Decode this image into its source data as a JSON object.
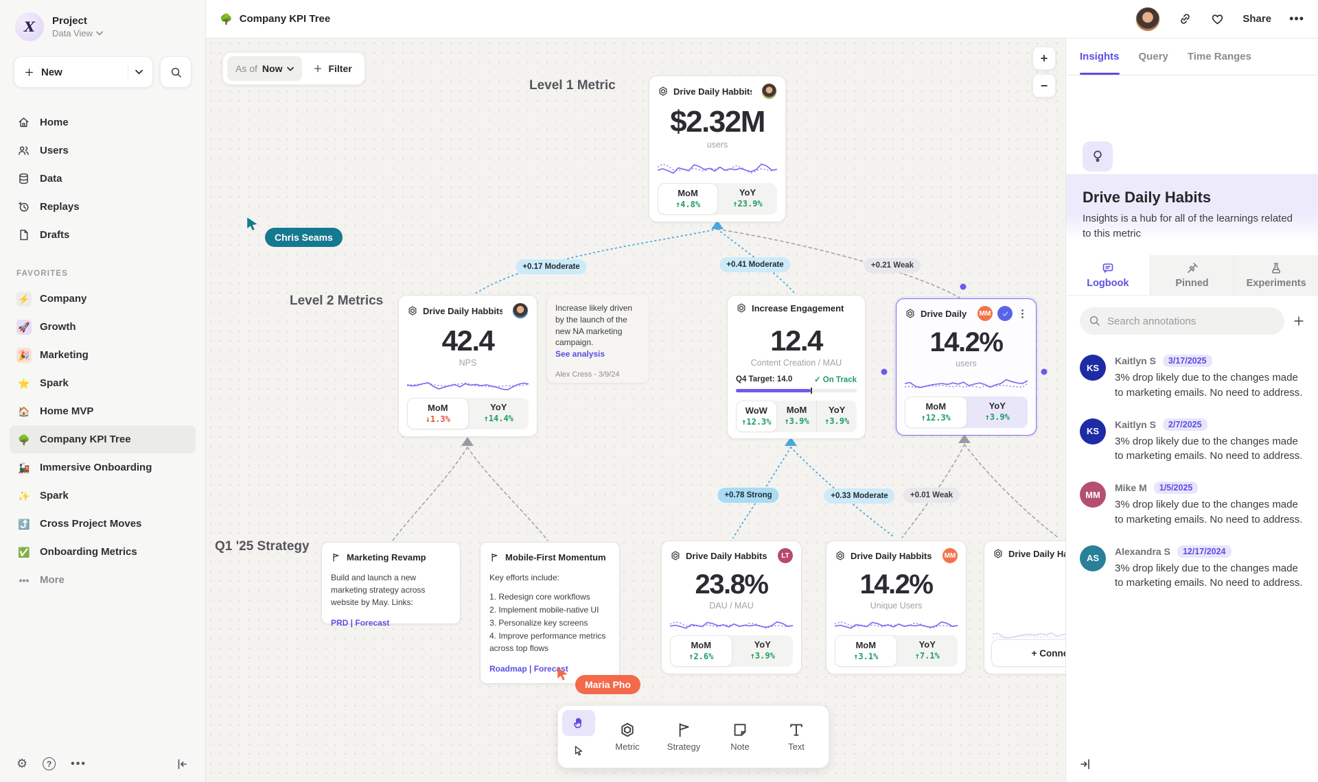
{
  "topbar": {
    "title_icon": "🌳",
    "title": "Company KPI Tree",
    "share": "Share"
  },
  "sidebar": {
    "workspace": "Project",
    "workspace_view": "Data View",
    "new_label": "New",
    "nav": [
      {
        "label": "Home"
      },
      {
        "label": "Users"
      },
      {
        "label": "Data"
      },
      {
        "label": "Replays"
      },
      {
        "label": "Drafts"
      }
    ],
    "favorites_label": "FAVORITES",
    "favorites": [
      {
        "icon": "⚡",
        "label": "Company"
      },
      {
        "icon": "🚀",
        "label": "Growth"
      },
      {
        "icon": "🎉",
        "label": "Marketing"
      },
      {
        "icon": "⭐",
        "label": "Spark"
      },
      {
        "icon": "🏠",
        "label": "Home MVP"
      },
      {
        "icon": "🌳",
        "label": "Company KPI Tree"
      },
      {
        "icon": "🚂",
        "label": "Immersive Onboarding"
      },
      {
        "icon": "✨",
        "label": "Spark"
      },
      {
        "icon": "⤴️",
        "label": "Cross Project Moves"
      },
      {
        "icon": "✅",
        "label": "Onboarding Metrics"
      }
    ],
    "more": "More"
  },
  "canvas": {
    "asof_label": "As of",
    "asof_value": "Now",
    "filter": "Filter",
    "zoom_in": "+",
    "zoom_out": "−",
    "labels": {
      "level1": "Level 1 Metric",
      "level2": "Level 2 Metrics",
      "strategy": "Q1 '25 Strategy"
    },
    "cursors": {
      "chris": "Chris Seams",
      "maria": "Maria Pho"
    },
    "edges": [
      "+0.17 Moderate",
      "+0.41 Moderate",
      "+0.21 Weak",
      "+0.78 Strong",
      "+0.33 Moderate",
      "+0.01 Weak"
    ],
    "cards": {
      "l1": {
        "title": "Drive Daily Habbits",
        "value": "$2.32M",
        "unit": "users",
        "mom_label": "MoM",
        "mom": "↑4.8%",
        "yoy_label": "YoY",
        "yoy": "↑23.9%"
      },
      "nps": {
        "title": "Drive Daily Habbits",
        "value": "42.4",
        "unit": "NPS",
        "mom_label": "MoM",
        "mom": "↓1.3%",
        "yoy_label": "YoY",
        "yoy": "↑14.4%"
      },
      "engagement": {
        "title": "Increase Engagement",
        "value": "12.4",
        "unit": "Content Creation / MAU",
        "target": "Q4 Target: 14.0",
        "status": "✓ On Track",
        "progress_pct": 62,
        "wow_label": "WoW",
        "wow": "↑12.3%",
        "mom_label": "MoM",
        "mom": "↑3.9%",
        "yoy_label": "YoY",
        "yoy": "↑3.9%"
      },
      "selected": {
        "title": "Drive Daily Habb..",
        "badge": "MM",
        "value": "14.2%",
        "unit": "users",
        "mom_label": "MoM",
        "mom": "↑12.3%",
        "yoy_label": "YoY",
        "yoy": "↑3.9%"
      },
      "dau": {
        "title": "Drive Daily Habbits",
        "badge": "LT",
        "value": "23.8%",
        "unit": "DAU / MAU",
        "mom_label": "MoM",
        "mom": "↑2.6%",
        "yoy_label": "YoY",
        "yoy": "↑3.9%"
      },
      "unique": {
        "title": "Drive Daily Habbits",
        "badge": "MM",
        "value": "14.2%",
        "unit": "Unique Users",
        "mom_label": "MoM",
        "mom": "↑3.1%",
        "yoy_label": "YoY",
        "yoy": "↑7.1%"
      },
      "partial": {
        "title": "Drive Daily Hab",
        "connect": "+ Connect"
      }
    },
    "note": {
      "text": "Increase likely driven by the launch of the new NA marketing campaign.",
      "link": "See analysis",
      "author": "Alex Cress - 3/9/24"
    },
    "strategies": {
      "marketing": {
        "title": "Marketing Revamp",
        "body": "Build and launch a new marketing strategy across website by May. Links:",
        "links": "PRD | Forecast"
      },
      "mobile": {
        "title": "Mobile-First Momentum",
        "intro": "Key efforts include:",
        "items": [
          "1. Redesign core workflows",
          "2. Implement mobile-native UI",
          "3. Personalize key screens",
          "4. Improve performance metrics across top flows"
        ],
        "links": "Roadmap | Forecast"
      }
    },
    "tools": {
      "metric": "Metric",
      "strategy": "Strategy",
      "note": "Note",
      "text": "Text"
    }
  },
  "right_panel": {
    "tabs": [
      "Insights",
      "Query",
      "Time Ranges"
    ],
    "metric_title": "Drive Daily Habits",
    "metric_desc": "Insights is a hub for all of the learnings related to this metric",
    "subtabs": [
      "Logbook",
      "Pinned",
      "Experiments"
    ],
    "search_placeholder": "Search annotations",
    "annotations": [
      {
        "initials": "KS",
        "name": "Kaitlyn S",
        "date": "3/17/2025",
        "text": "3% drop likely due to the changes made to marketing emails. No need to address.",
        "color": "#1d2ba6"
      },
      {
        "initials": "KS",
        "name": "Kaitlyn S",
        "date": "2/7/2025",
        "text": "3% drop likely due to the changes made to marketing emails. No need to address.",
        "color": "#1d2ba6"
      },
      {
        "initials": "MM",
        "name": "Mike M",
        "date": "1/5/2025",
        "text": "3% drop likely due to the changes made to marketing emails. No need to address.",
        "color": "#b44f72"
      },
      {
        "initials": "AS",
        "name": "Alexandra S",
        "date": "12/17/2024",
        "text": "3% drop likely due to the changes made to marketing emails. No need to address.",
        "color": "#2a7f99"
      }
    ]
  },
  "sparks": {
    "a": {
      "solid": [
        0.42,
        0.48,
        0.4,
        0.3,
        0.52,
        0.46,
        0.4,
        0.65,
        0.58,
        0.45,
        0.5,
        0.38,
        0.55,
        0.42,
        0.48,
        0.44,
        0.5,
        0.42,
        0.36,
        0.45,
        0.68,
        0.6,
        0.42,
        0.46
      ],
      "dotted": [
        0.55,
        0.68,
        0.6,
        0.44,
        0.4,
        0.48,
        0.42,
        0.5,
        0.44,
        0.38,
        0.52,
        0.46,
        0.55,
        0.4,
        0.46,
        0.62,
        0.55,
        0.42,
        0.3,
        0.4,
        0.48,
        0.44,
        0.4,
        0.46
      ]
    },
    "b": {
      "solid": [
        0.55,
        0.6,
        0.4,
        0.35,
        0.42,
        0.48,
        0.52,
        0.55,
        0.5,
        0.58,
        0.52,
        0.62,
        0.44,
        0.52,
        0.58,
        0.5,
        0.36,
        0.48,
        0.55,
        0.75,
        0.65,
        0.58,
        0.55,
        0.7
      ],
      "dotted": [
        0.38,
        0.4,
        0.36,
        0.34,
        0.4,
        0.44,
        0.42,
        0.46,
        0.4,
        0.38,
        0.44,
        0.36,
        0.42,
        0.4,
        0.34,
        0.44,
        0.4,
        0.42,
        0.46,
        0.44,
        0.4,
        0.38,
        0.36,
        0.55
      ]
    },
    "c": {
      "solid": [
        0.5,
        0.44,
        0.48,
        0.55,
        0.6,
        0.42,
        0.3,
        0.38,
        0.45,
        0.52,
        0.4,
        0.55,
        0.48,
        0.52,
        0.46,
        0.5,
        0.44,
        0.38,
        0.3,
        0.26,
        0.4,
        0.52,
        0.58,
        0.54
      ],
      "dotted": [
        0.46,
        0.5,
        0.52,
        0.55,
        0.58,
        0.5,
        0.46,
        0.44,
        0.46,
        0.48,
        0.55,
        0.58,
        0.52,
        0.46,
        0.44,
        0.42,
        0.4,
        0.42,
        0.44,
        0.46,
        0.44,
        0.46,
        0.48,
        0.52
      ]
    }
  }
}
